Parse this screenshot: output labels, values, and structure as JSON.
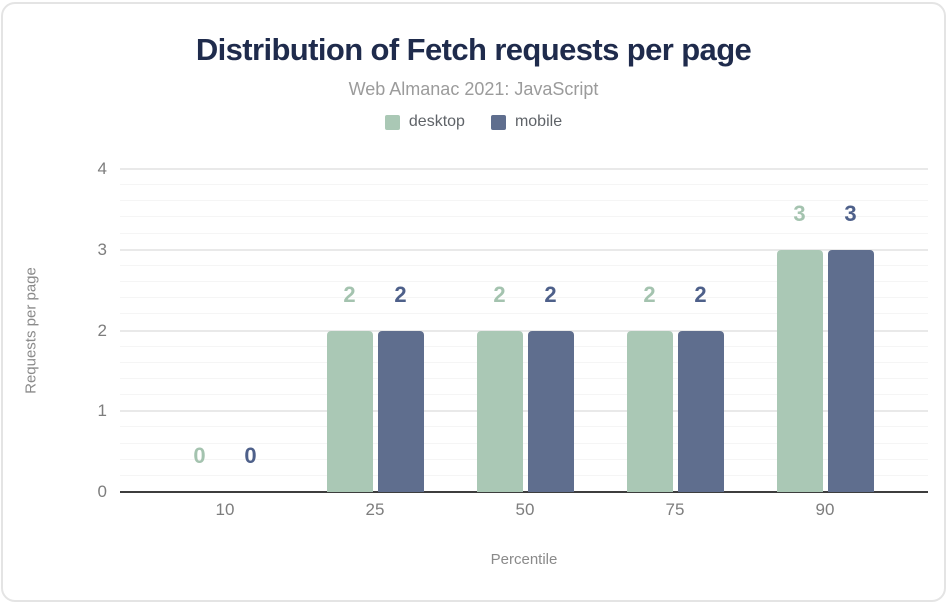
{
  "chart_data": {
    "type": "bar",
    "title": "Distribution of Fetch requests per page",
    "subtitle": "Web Almanac 2021: JavaScript",
    "xlabel": "Percentile",
    "ylabel": "Requests per page",
    "categories": [
      "10",
      "25",
      "50",
      "75",
      "90"
    ],
    "series": [
      {
        "name": "desktop",
        "color": "#aac8b5",
        "label_color": "#a4c3af",
        "values": [
          0,
          2,
          2,
          2,
          3
        ]
      },
      {
        "name": "mobile",
        "color": "#5f6e8e",
        "label_color": "#4e608a",
        "values": [
          0,
          2,
          2,
          2,
          3
        ]
      }
    ],
    "ylim": [
      0,
      4
    ],
    "yticks": [
      0,
      1,
      2,
      3,
      4
    ],
    "minor_grid_step": 0.2,
    "grid": true,
    "legend_position": "top",
    "bar_labels_shown": true
  },
  "colors": {
    "title": "#1f2b4c",
    "subtitle": "#9b9b9b",
    "axis_line": "#3d3d3d",
    "tick_label": "#7d7d7d",
    "axis_title": "#8a8a8a",
    "grid_major": "#e9e9e9",
    "grid_minor": "#f5f5f5",
    "card_border": "#e4e4e4"
  }
}
